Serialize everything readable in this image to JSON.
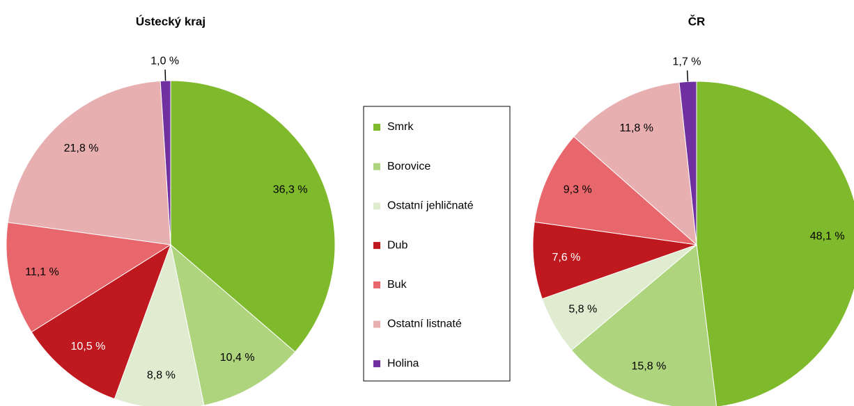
{
  "chart_data": [
    {
      "type": "pie",
      "title": "Ústecký kraj",
      "values": [
        36.3,
        10.4,
        8.8,
        10.5,
        11.1,
        21.8,
        1.0
      ],
      "value_labels": [
        "36,3 %",
        "10,4 %",
        "8,8 %",
        "10,5 %",
        "11,1 %",
        "21,8 %",
        "1,0 %"
      ]
    },
    {
      "type": "pie",
      "title": "ČR",
      "values": [
        48.1,
        15.8,
        5.8,
        7.6,
        9.3,
        11.8,
        1.7
      ],
      "value_labels": [
        "48,1 %",
        "15,8 %",
        "5,8 %",
        "7,6 %",
        "9,3 %",
        "11,8 %",
        "1,7 %"
      ]
    }
  ],
  "legend": {
    "categories": [
      "Smrk",
      "Borovice",
      "Ostatní jehličnaté",
      "Dub",
      "Buk",
      "Ostatní listnaté",
      "Holina"
    ],
    "colors": [
      "#7fba2d",
      "#afd47e",
      "#dfecd0",
      "#c0181f",
      "#e8676c",
      "#e8afb1",
      "#7030a0"
    ]
  }
}
